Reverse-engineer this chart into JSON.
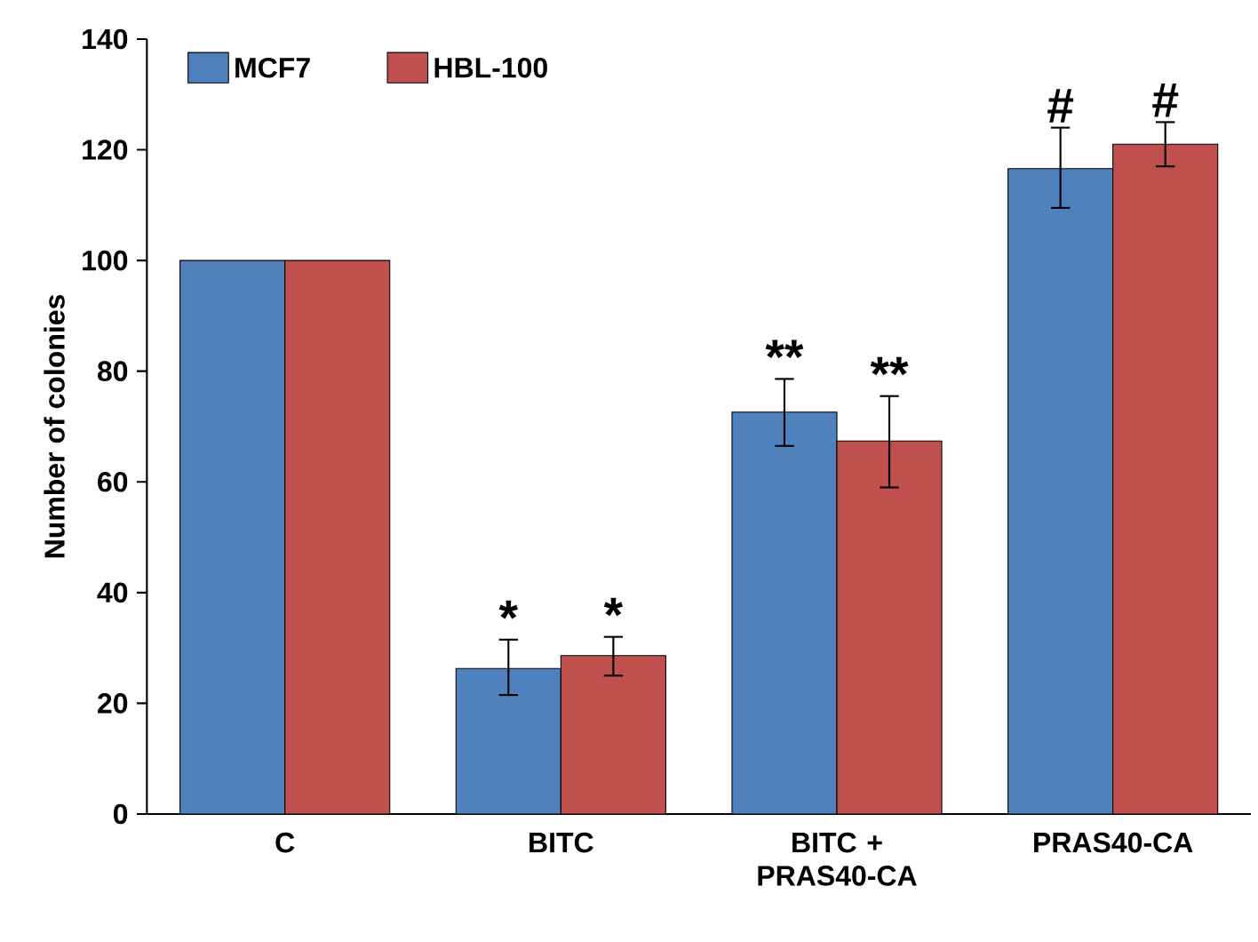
{
  "chart_data": {
    "type": "bar",
    "ylabel": "Number of colonies",
    "categories": [
      "C",
      "BITC",
      "BITC + PRAS40-CA",
      "PRAS40-CA"
    ],
    "series": [
      {
        "name": "MCF7",
        "color": "#4f81bd",
        "values": [
          100,
          26.3,
          72.6,
          116.6
        ],
        "errors": [
          null,
          [
            21.5,
            31.5
          ],
          [
            66.5,
            78.6
          ],
          [
            109.5,
            124
          ]
        ],
        "value_labels": [
          null,
          "*",
          "**",
          "#"
        ]
      },
      {
        "name": "HBL-100",
        "color": "#c0504d",
        "values": [
          100,
          28.6,
          67.4,
          121
        ],
        "errors": [
          null,
          [
            25,
            32
          ],
          [
            59,
            75.5
          ],
          [
            117,
            125
          ]
        ],
        "value_labels": [
          null,
          "*",
          "**",
          "#"
        ]
      }
    ],
    "ylim": [
      0,
      140
    ],
    "yticks": [
      0,
      20,
      40,
      60,
      80,
      100,
      120,
      140
    ],
    "legend": "top left",
    "grid": false
  }
}
